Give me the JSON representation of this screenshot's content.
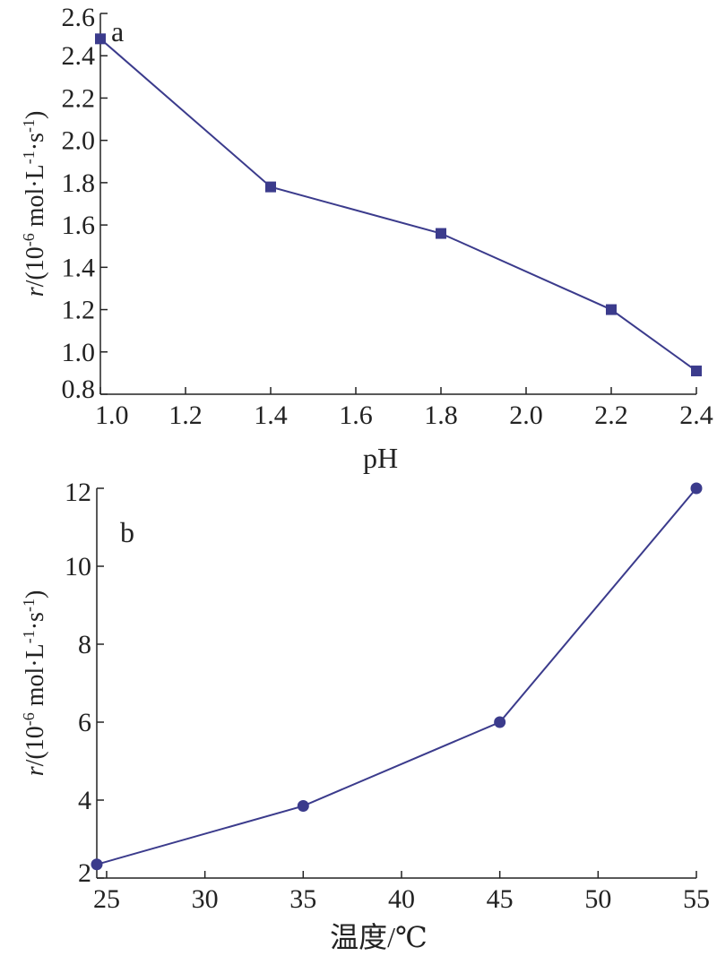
{
  "chart_data": [
    {
      "type": "line",
      "panel_label": "a",
      "xlabel": "pH",
      "ylabel": {
        "prefix": "r",
        "slash_open": "/(10",
        "exp1": "-6",
        "unit_mid": " mol·L",
        "exp2": "-1",
        "dot": "·s",
        "exp3": "-1",
        "close": ")"
      },
      "xlim": [
        1.0,
        2.4
      ],
      "ylim": [
        0.8,
        2.6
      ],
      "xticks": [
        "1.0",
        "1.2",
        "1.4",
        "1.6",
        "1.8",
        "2.0",
        "2.2",
        "2.4"
      ],
      "yticks": [
        "0.8",
        "1.0",
        "1.2",
        "1.4",
        "1.6",
        "1.8",
        "2.0",
        "2.2",
        "2.4",
        "2.6"
      ],
      "marker": "square",
      "color": "#3b3b8c",
      "series": [
        {
          "x": [
            1.0,
            1.4,
            1.8,
            2.2,
            2.4
          ],
          "y": [
            2.48,
            1.78,
            1.56,
            1.2,
            0.91
          ]
        }
      ]
    },
    {
      "type": "line",
      "panel_label": "b",
      "xlabel": "温度/℃",
      "ylabel": {
        "prefix": "r",
        "slash_open": "/(10",
        "exp1": "-6",
        "unit_mid": " mol·L",
        "exp2": "-1",
        "dot": "·s",
        "exp3": "-1",
        "close": ")"
      },
      "xlim": [
        24.5,
        55
      ],
      "ylim": [
        2,
        12
      ],
      "xticks": [
        "25",
        "30",
        "35",
        "40",
        "45",
        "50",
        "55"
      ],
      "yticks": [
        "2",
        "4",
        "6",
        "8",
        "10",
        "12"
      ],
      "marker": "circle",
      "color": "#3b3b8c",
      "series": [
        {
          "x": [
            24.5,
            35,
            45,
            55
          ],
          "y": [
            2.35,
            3.85,
            6.0,
            12.0
          ]
        }
      ]
    }
  ]
}
